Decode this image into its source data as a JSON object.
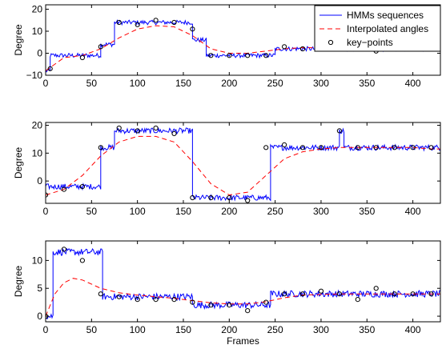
{
  "chart_data": [
    {
      "type": "line",
      "ylabel": "Degree",
      "xlabel": "",
      "xlim": [
        0,
        430
      ],
      "ylim": [
        -10,
        22
      ],
      "xticks": [
        0,
        50,
        100,
        150,
        200,
        250,
        300,
        350,
        400
      ],
      "yticks": [
        -10,
        0,
        10,
        20
      ],
      "legend": {
        "position": "top-right",
        "entries": [
          "HMMs sequences",
          "Interpolated angles",
          "key−points"
        ]
      },
      "series": [
        {
          "name": "HMMs sequences",
          "style": "solid",
          "color": "#0000ff",
          "segments": [
            [
              0,
              5,
              -8
            ],
            [
              5,
              60,
              -1
            ],
            [
              60,
              75,
              4
            ],
            [
              75,
              160,
              14
            ],
            [
              160,
              175,
              6
            ],
            [
              175,
              250,
              -1
            ],
            [
              250,
              430,
              2
            ]
          ],
          "noise": 1.0
        },
        {
          "name": "Interpolated angles",
          "style": "dashed",
          "color": "#ff0000",
          "x": [
            0,
            20,
            40,
            60,
            80,
            100,
            120,
            140,
            160,
            180,
            200,
            220,
            240,
            260,
            280,
            300,
            320,
            340,
            360,
            380,
            400,
            420,
            430
          ],
          "y": [
            -8,
            -2,
            -1,
            2,
            7,
            11,
            12.5,
            12,
            8,
            2,
            0,
            0,
            1,
            2,
            2.5,
            2.5,
            2.5,
            2.5,
            2.5,
            2.5,
            2.5,
            2.5,
            2.5
          ]
        },
        {
          "name": "key−points",
          "style": "markers",
          "color": "#000000",
          "x": [
            5,
            40,
            60,
            80,
            100,
            120,
            140,
            160,
            180,
            200,
            220,
            240,
            260,
            280,
            300,
            320,
            340,
            360,
            380,
            400,
            420
          ],
          "y": [
            -7,
            -2,
            3,
            14,
            13,
            15,
            14,
            11,
            -1,
            -1,
            -1,
            -1,
            3,
            2,
            2,
            3,
            2,
            1,
            2,
            2,
            2
          ]
        }
      ]
    },
    {
      "type": "line",
      "ylabel": "Degree",
      "xlabel": "",
      "xlim": [
        0,
        430
      ],
      "ylim": [
        -8,
        21
      ],
      "xticks": [
        0,
        50,
        100,
        150,
        200,
        250,
        300,
        350,
        400
      ],
      "yticks": [
        0,
        10,
        20
      ],
      "series": [
        {
          "name": "HMMs sequences",
          "style": "solid",
          "color": "#0000ff",
          "segments": [
            [
              0,
              60,
              -2
            ],
            [
              60,
              75,
              12
            ],
            [
              75,
              160,
              18
            ],
            [
              160,
              245,
              -6
            ],
            [
              245,
              320,
              12
            ],
            [
              320,
              325,
              18
            ],
            [
              325,
              430,
              12
            ]
          ],
          "noise": 1.0
        },
        {
          "name": "Interpolated angles",
          "style": "dashed",
          "color": "#ff0000",
          "x": [
            0,
            20,
            40,
            60,
            80,
            100,
            120,
            140,
            160,
            180,
            200,
            220,
            240,
            260,
            280,
            300,
            320,
            340,
            360,
            380,
            400,
            420,
            430
          ],
          "y": [
            -5,
            -3,
            2,
            9,
            14,
            16,
            16,
            14,
            7,
            -1,
            -5,
            -4,
            2,
            8,
            10.5,
            11.5,
            12,
            12,
            12,
            12,
            12,
            11.5,
            11.5
          ]
        },
        {
          "name": "key−points",
          "style": "markers",
          "color": "#000000",
          "x": [
            0,
            20,
            40,
            60,
            80,
            100,
            120,
            140,
            160,
            180,
            200,
            220,
            240,
            260,
            280,
            300,
            320,
            340,
            360,
            380,
            400,
            420
          ],
          "y": [
            -5,
            -3,
            -2,
            12,
            19,
            18,
            19,
            17,
            -6,
            -6,
            -6,
            -7,
            12,
            13,
            12,
            12,
            18,
            12,
            12,
            12,
            12,
            12
          ]
        }
      ]
    },
    {
      "type": "line",
      "ylabel": "Degree",
      "xlabel": "Frames",
      "xlim": [
        0,
        430
      ],
      "ylim": [
        -1,
        13.5
      ],
      "xticks": [
        0,
        50,
        100,
        150,
        200,
        250,
        300,
        350,
        400
      ],
      "yticks": [
        0,
        5,
        10
      ],
      "series": [
        {
          "name": "HMMs sequences",
          "style": "solid",
          "color": "#0000ff",
          "segments": [
            [
              0,
              8,
              0
            ],
            [
              8,
              62,
              11.5
            ],
            [
              62,
              160,
              3.5
            ],
            [
              160,
              245,
              2
            ],
            [
              245,
              430,
              4
            ]
          ],
          "noise": 0.6
        },
        {
          "name": "Interpolated angles",
          "style": "dashed",
          "color": "#ff0000",
          "x": [
            0,
            10,
            20,
            30,
            40,
            60,
            80,
            100,
            120,
            140,
            160,
            180,
            200,
            220,
            240,
            260,
            280,
            300,
            320,
            340,
            360,
            380,
            400,
            430
          ],
          "y": [
            0,
            4,
            6,
            6.8,
            6.5,
            5,
            4.2,
            3.8,
            3.5,
            3.2,
            2.8,
            2.4,
            2.2,
            2.2,
            2.6,
            3.3,
            3.8,
            3.9,
            4,
            4,
            4,
            4,
            4,
            4
          ]
        },
        {
          "name": "key−points",
          "style": "markers",
          "color": "#000000",
          "x": [
            0,
            20,
            40,
            60,
            80,
            100,
            120,
            140,
            160,
            180,
            200,
            220,
            240,
            260,
            280,
            300,
            320,
            340,
            360,
            380,
            400,
            420
          ],
          "y": [
            0,
            12,
            10,
            4,
            3.5,
            3,
            3,
            3,
            2.5,
            2,
            2,
            1,
            2.5,
            4,
            4,
            4.5,
            4,
            3,
            5,
            4,
            4,
            4
          ]
        }
      ]
    }
  ]
}
